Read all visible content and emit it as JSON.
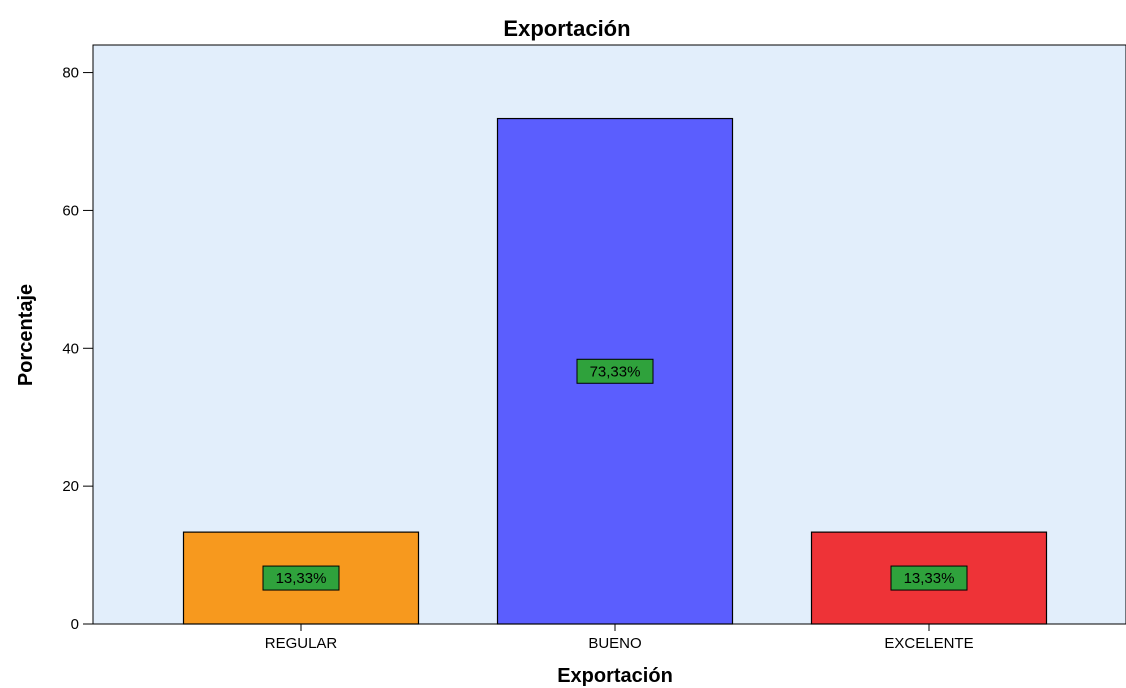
{
  "chart_data": {
    "type": "bar",
    "title": "Exportación",
    "xlabel": "Exportación",
    "ylabel": "Porcentaje",
    "categories": [
      "REGULAR",
      "BUENO",
      "EXCELENTE"
    ],
    "values": [
      13.33,
      73.33,
      13.33
    ],
    "data_labels": [
      "13,33%",
      "73,33%",
      "13,33%"
    ],
    "bar_colors": [
      "#f7991e",
      "#5b5efe",
      "#ee3337"
    ],
    "data_label_color": "#2fa23c",
    "plot_background": "#e2eefb",
    "ylim": [
      0,
      84
    ],
    "yticks": [
      0,
      20,
      40,
      60,
      80
    ],
    "ytick_labels": [
      "0",
      "20",
      "40",
      "60",
      "80"
    ],
    "grid": false,
    "legend": "none"
  }
}
